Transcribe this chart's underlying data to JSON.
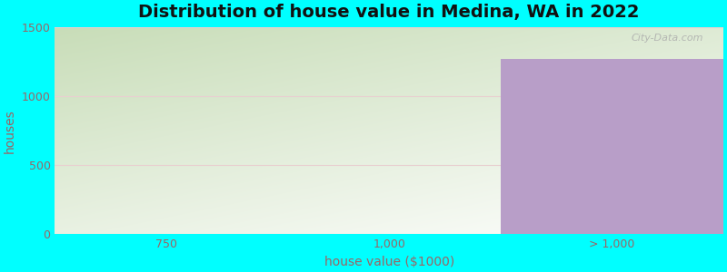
{
  "title": "Distribution of house value in Medina, WA in 2022",
  "xlabel": "house value ($1000)",
  "ylabel": "houses",
  "categories": [
    "750",
    "1,000",
    "> 1,000"
  ],
  "values": [
    0,
    0,
    1270
  ],
  "bar_color_purple": "#b89ec8",
  "ylim": [
    0,
    1500
  ],
  "yticks": [
    0,
    500,
    1000,
    1500
  ],
  "background_color": "#00ffff",
  "plot_bg_top_left": "#c8ddb8",
  "plot_bg_bottom_right": "#f0f8ee",
  "plot_bg_white": "#ffffff",
  "title_fontsize": 14,
  "axis_label_fontsize": 10,
  "tick_fontsize": 9,
  "tick_color": "#996666",
  "label_color": "#996666",
  "grid_color": "#e8d0d0",
  "bar_width": 1.0
}
